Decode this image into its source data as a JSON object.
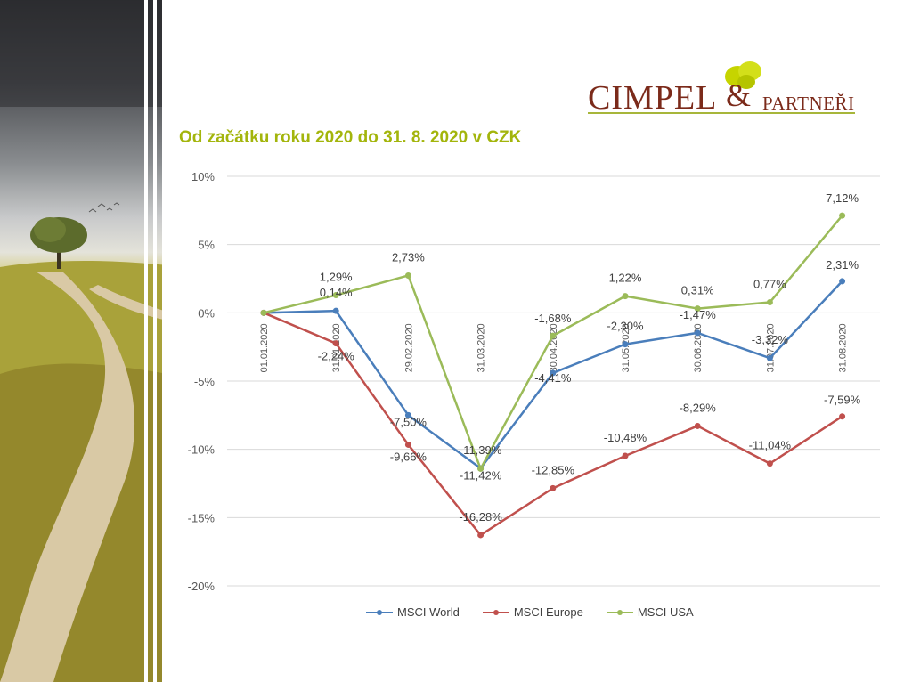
{
  "slide": {
    "title": "Od začátku roku 2020 do 31. 8. 2020 v CZK"
  },
  "logo": {
    "name": "CIMPEL",
    "amp": "&",
    "partner": "PARTNEŘI"
  },
  "colors": {
    "title": "#a3b50c",
    "logo": "#7b2a1a",
    "world": "#4a7ebb",
    "europe": "#c0504d",
    "usa": "#9bbb59",
    "grid": "#d9d9d9"
  },
  "chart_data": {
    "type": "line",
    "categories": [
      "01.01.2020",
      "31.01.2020",
      "29.02.2020",
      "31.03.2020",
      "30.04.2020",
      "31.05.2020",
      "30.06.2020",
      "31.07.2020",
      "31.08.2020"
    ],
    "series": [
      {
        "name": "MSCI World",
        "color": "#4a7ebb",
        "values": [
          0,
          0.14,
          -7.5,
          -11.39,
          -4.41,
          -2.3,
          -1.47,
          -3.32,
          2.31
        ],
        "labels": [
          "",
          "0,14%",
          "-7,50%",
          "-11,39%",
          "-4,41%",
          "-2,30%",
          "-1,47%",
          "-3,32%",
          "2,31%"
        ]
      },
      {
        "name": "MSCI Europe",
        "color": "#c0504d",
        "values": [
          0,
          -2.24,
          -9.66,
          -16.28,
          -12.85,
          -10.48,
          -8.29,
          -11.04,
          -7.59
        ],
        "labels": [
          "",
          "-2,24%",
          "-9,66%",
          "-16,28%",
          "-12,85%",
          "-10,48%",
          "-8,29%",
          "-11,04%",
          "-7,59%"
        ]
      },
      {
        "name": "MSCI USA",
        "color": "#9bbb59",
        "values": [
          0,
          1.29,
          2.73,
          -11.42,
          -1.68,
          1.22,
          0.31,
          0.77,
          7.12
        ],
        "labels": [
          "",
          "1,29%",
          "2,73%",
          "-11,42%",
          "-1,68%",
          "1,22%",
          "0,31%",
          "0,77%",
          "7,12%"
        ]
      }
    ],
    "y_ticks": [
      "10%",
      "5%",
      "0%",
      "-5%",
      "-10%",
      "-15%",
      "-20%"
    ],
    "y_tick_values": [
      10,
      5,
      0,
      -5,
      -10,
      -15,
      -20
    ],
    "ylim": [
      -20,
      10
    ],
    "grid": true,
    "legend": "bottom"
  }
}
